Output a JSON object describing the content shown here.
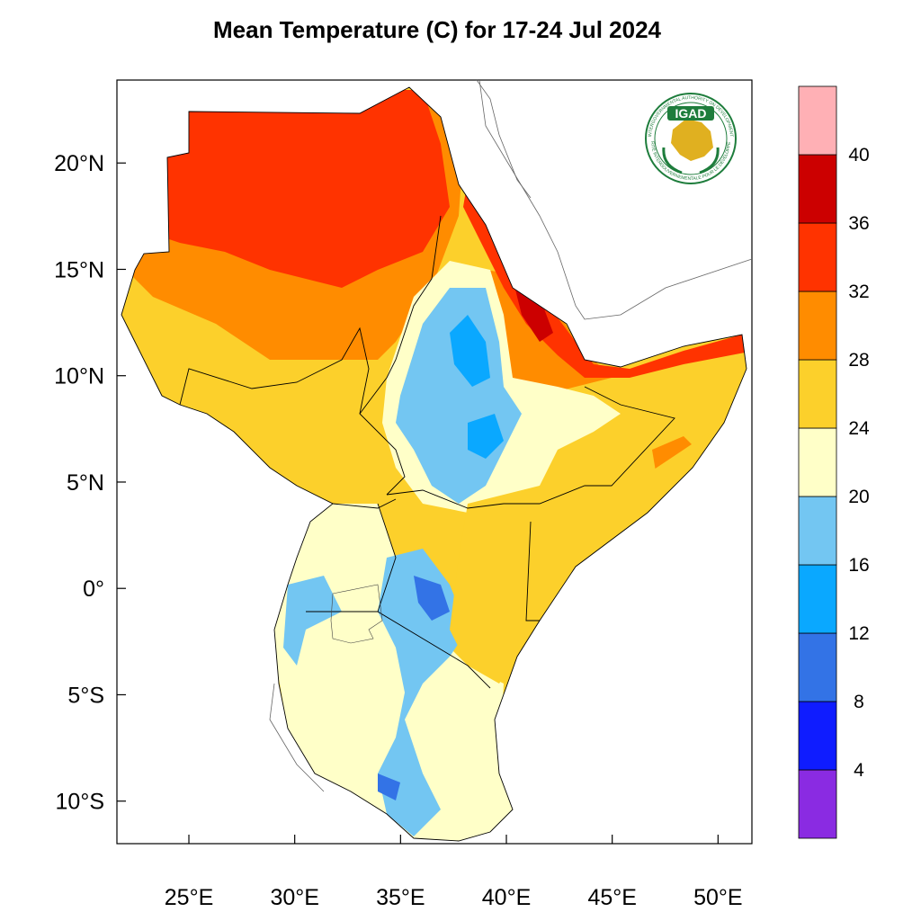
{
  "title": "Mean Temperature (C) for 17-24 Jul 2024",
  "logo": {
    "acronym": "IGAD",
    "ring_top": "INTERGOVERNMENTAL AUTHORITY ON DEVELOPMENT",
    "ring_bottom": "AUTORITÉ INTERGOUVERNEMENTALE POUR LE DÉVELOPPEMENT",
    "colors": {
      "ring": "#1e7d3c",
      "map": "#e0b020",
      "badge": "#1e7d3c"
    }
  },
  "axes": {
    "lon_ticks": [
      {
        "value": 25,
        "label": "25°E"
      },
      {
        "value": 30,
        "label": "30°E"
      },
      {
        "value": 35,
        "label": "35°E"
      },
      {
        "value": 40,
        "label": "40°E"
      },
      {
        "value": 45,
        "label": "45°E"
      },
      {
        "value": 50,
        "label": "50°E"
      }
    ],
    "lat_ticks": [
      {
        "value": 20,
        "label": "20°N"
      },
      {
        "value": 15,
        "label": "15°N"
      },
      {
        "value": 10,
        "label": "10°N"
      },
      {
        "value": 5,
        "label": "5°N"
      },
      {
        "value": 0,
        "label": "0°"
      },
      {
        "value": -5,
        "label": "5°S"
      },
      {
        "value": -10,
        "label": "10°S"
      }
    ],
    "lon_range": [
      21.6,
      51.6
    ],
    "lat_range": [
      -12,
      23.9
    ]
  },
  "colorbar": {
    "bins": [
      {
        "color": "#8a2be2"
      },
      {
        "color": "#0f1cff"
      },
      {
        "color": "#3373e6"
      },
      {
        "color": "#0aa8ff"
      },
      {
        "color": "#73c6f2"
      },
      {
        "color": "#ffffc8"
      },
      {
        "color": "#fcd02b"
      },
      {
        "color": "#ff8c00"
      },
      {
        "color": "#ff3300"
      },
      {
        "color": "#cc0000"
      },
      {
        "color": "#ffb0b5"
      }
    ],
    "labels": [
      "4",
      "8",
      "12",
      "16",
      "20",
      "24",
      "28",
      "32",
      "36",
      "40"
    ]
  },
  "colors": {
    "cool": "#73c6f2",
    "cold": "#0aa8ff",
    "colder": "#3373e6",
    "mild": "#ffffc8",
    "warm": "#fcd02b",
    "hot": "#ff8c00",
    "veryhot": "#ff3300",
    "extreme": "#cc0000"
  }
}
